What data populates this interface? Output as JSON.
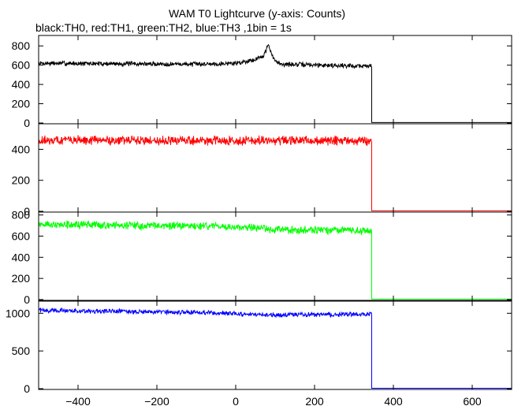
{
  "title": "WAM T0 Lightcurve (y-axis: Counts)",
  "subtitle": "black:TH0, red:TH1, green:TH2, blue:TH3 ,1bin = 1s",
  "chart_data": {
    "type": "line",
    "x_axis": {
      "range": [
        -500,
        700
      ],
      "ticks": [
        -400,
        -200,
        0,
        200,
        400,
        600
      ]
    },
    "noise_seed": 7,
    "panels": [
      {
        "name": "TH0",
        "color": "#000000",
        "ylim": [
          0,
          900
        ],
        "yticks": [
          0,
          200,
          400,
          600,
          800
        ],
        "baseline": [
          [
            -500,
            620
          ],
          [
            -100,
            610
          ],
          [
            0,
            620
          ],
          [
            50,
            660
          ],
          [
            70,
            700
          ],
          [
            78,
            760
          ],
          [
            82,
            820
          ],
          [
            90,
            720
          ],
          [
            100,
            640
          ],
          [
            120,
            610
          ],
          [
            340,
            590
          ]
        ],
        "noise_amplitude": 20,
        "drop_x": 345,
        "after_value": 5,
        "after_end": 700
      },
      {
        "name": "TH1",
        "color": "#ff0000",
        "ylim": [
          0,
          560
        ],
        "yticks": [
          0,
          200,
          400
        ],
        "baseline": [
          [
            -500,
            460
          ],
          [
            100,
            455
          ],
          [
            340,
            455
          ]
        ],
        "noise_amplitude": 25,
        "drop_x": 345,
        "after_value": 3,
        "after_end": 700
      },
      {
        "name": "TH2",
        "color": "#00ff00",
        "ylim": [
          0,
          820
        ],
        "yticks": [
          0,
          200,
          400,
          600,
          800
        ],
        "baseline": [
          [
            -500,
            710
          ],
          [
            0,
            690
          ],
          [
            100,
            660
          ],
          [
            340,
            650
          ]
        ],
        "noise_amplitude": 30,
        "drop_x": 345,
        "after_value": 5,
        "after_end": 700
      },
      {
        "name": "TH3",
        "color": "#0000ff",
        "ylim": [
          0,
          1150
        ],
        "yticks": [
          0,
          500,
          1000
        ],
        "baseline": [
          [
            -500,
            1040
          ],
          [
            -100,
            1010
          ],
          [
            0,
            995
          ],
          [
            100,
            975
          ],
          [
            340,
            990
          ]
        ],
        "noise_amplitude": 25,
        "drop_x": 345,
        "after_value": 5,
        "after_end": 700
      }
    ]
  }
}
